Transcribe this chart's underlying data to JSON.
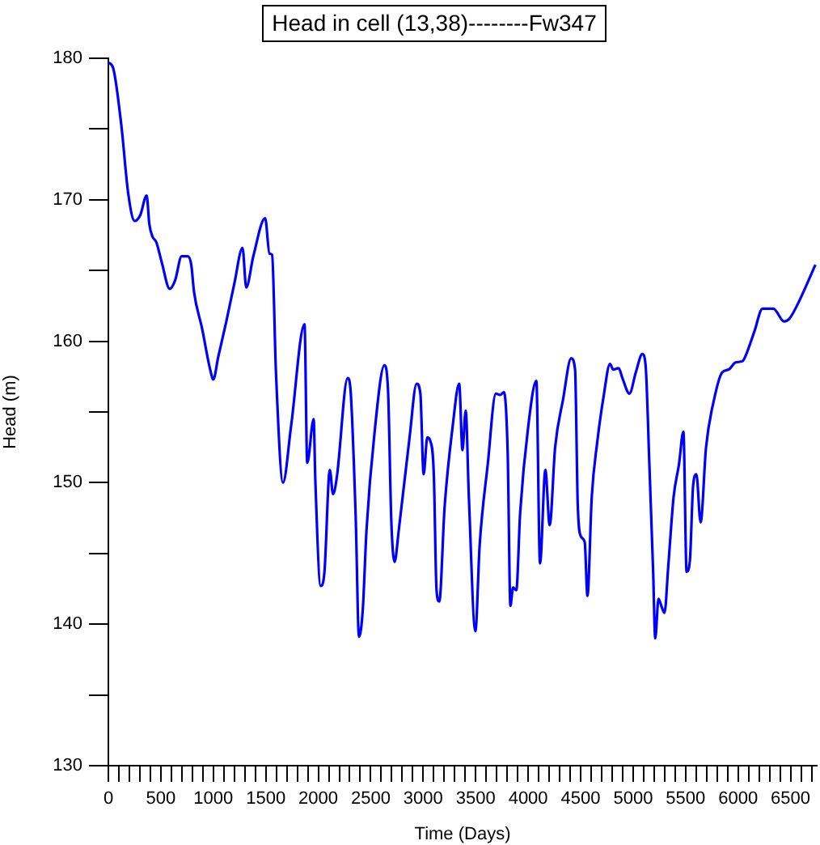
{
  "chart_data": {
    "type": "line",
    "title": "Head in cell (13,38)--------Fw347",
    "xlabel": "Time (Days)",
    "ylabel": "Head (m)",
    "x": [
      0,
      46,
      123,
      190,
      251,
      303,
      365,
      390,
      420,
      457,
      508,
      585,
      636,
      698,
      755,
      790,
      816,
      893,
      970,
      1000,
      1047,
      1124,
      1201,
      1278,
      1314,
      1381,
      1494,
      1535,
      1560,
      1597,
      1664,
      1741,
      1869,
      1895,
      1956,
      1972,
      2023,
      2059,
      2110,
      2141,
      2177,
      2280,
      2306,
      2357,
      2388,
      2424,
      2460,
      2537,
      2630,
      2665,
      2696,
      2727,
      2768,
      2870,
      2937,
      2973,
      3004,
      3039,
      3065,
      3101,
      3127,
      3153,
      3204,
      3281,
      3343,
      3374,
      3405,
      3435,
      3497,
      3538,
      3615,
      3692,
      3733,
      3769,
      3805,
      3831,
      3856,
      3887,
      3924,
      4001,
      4078,
      4113,
      4164,
      4205,
      4257,
      4333,
      4410,
      4447,
      4472,
      4503,
      4539,
      4565,
      4606,
      4657,
      4719,
      4780,
      4811,
      4862,
      4898,
      4965,
      5026,
      5088,
      5119,
      5155,
      5191,
      5211,
      5242,
      5273,
      5299,
      5335,
      5386,
      5437,
      5479,
      5510,
      5541,
      5572,
      5603,
      5643,
      5695,
      5772,
      5849,
      5911,
      5977,
      6043,
      6079,
      6156,
      6233,
      6336,
      6439,
      6490,
      6567,
      6737
    ],
    "series": [
      {
        "color": "#0000ff",
        "values": [
          179.7,
          179.3,
          175.3,
          170.4,
          168.5,
          168.9,
          170.3,
          168.3,
          167.4,
          167.0,
          165.6,
          163.7,
          164.3,
          166.0,
          166.0,
          165.4,
          163.5,
          160.9,
          158.0,
          157.3,
          158.9,
          161.4,
          164.1,
          166.6,
          163.8,
          166.0,
          168.7,
          166.2,
          166.1,
          157.8,
          150.0,
          154.0,
          161.2,
          151.4,
          154.5,
          150.2,
          142.7,
          143.7,
          150.9,
          149.2,
          150.4,
          157.4,
          156.7,
          147.5,
          139.1,
          141.0,
          146.7,
          153.6,
          158.3,
          156.5,
          147.3,
          144.4,
          146.7,
          153.2,
          157.0,
          156.3,
          150.6,
          153.2,
          153.0,
          150.6,
          142.4,
          141.6,
          148.3,
          154.0,
          157.0,
          152.3,
          155.1,
          149.0,
          139.5,
          145.6,
          151.3,
          156.3,
          156.2,
          156.4,
          152.1,
          141.3,
          142.6,
          142.4,
          147.9,
          154.0,
          157.2,
          144.3,
          150.9,
          147.0,
          152.5,
          155.9,
          158.8,
          158.0,
          148.6,
          146.2,
          145.8,
          142.0,
          149.0,
          152.8,
          156.1,
          158.4,
          158.0,
          158.1,
          157.4,
          156.3,
          157.8,
          159.1,
          158.3,
          151.3,
          143.7,
          139.0,
          141.8,
          141.2,
          140.8,
          144.1,
          149.0,
          151.3,
          153.6,
          143.7,
          144.5,
          149.8,
          150.6,
          147.2,
          152.5,
          155.9,
          157.8,
          158.0,
          158.5,
          158.6,
          159.1,
          160.7,
          162.3,
          162.3,
          161.4,
          161.6,
          162.6,
          165.4
        ]
      }
    ],
    "xlim": [
      0,
      6750
    ],
    "xticks": [
      0,
      {
        "value": 100,
        "label": null
      },
      {
        "value": 200,
        "label": null
      },
      {
        "value": 300,
        "label": null
      },
      {
        "value": 400,
        "label": null
      },
      500,
      {
        "value": 600,
        "label": null
      },
      {
        "value": 700,
        "label": null
      },
      {
        "value": 800,
        "label": null
      },
      {
        "value": 900,
        "label": null
      },
      1000,
      {
        "value": 1100,
        "label": null
      },
      {
        "value": 1200,
        "label": null
      },
      {
        "value": 1300,
        "label": null
      },
      {
        "value": 1400,
        "label": null
      },
      1500,
      {
        "value": 1600,
        "label": null
      },
      {
        "value": 1700,
        "label": null
      },
      {
        "value": 1800,
        "label": null
      },
      {
        "value": 1900,
        "label": null
      },
      2000,
      {
        "value": 2100,
        "label": null
      },
      {
        "value": 2200,
        "label": null
      },
      {
        "value": 2300,
        "label": null
      },
      {
        "value": 2400,
        "label": null
      },
      2500,
      {
        "value": 2600,
        "label": null
      },
      {
        "value": 2700,
        "label": null
      },
      {
        "value": 2800,
        "label": null
      },
      {
        "value": 2900,
        "label": null
      },
      3000,
      {
        "value": 3100,
        "label": null
      },
      {
        "value": 3200,
        "label": null
      },
      {
        "value": 3300,
        "label": null
      },
      {
        "value": 3400,
        "label": null
      },
      3500,
      {
        "value": 3600,
        "label": null
      },
      {
        "value": 3700,
        "label": null
      },
      {
        "value": 3800,
        "label": null
      },
      {
        "value": 3900,
        "label": null
      },
      4000,
      {
        "value": 4100,
        "label": null
      },
      {
        "value": 4200,
        "label": null
      },
      {
        "value": 4300,
        "label": null
      },
      {
        "value": 4400,
        "label": null
      },
      4500,
      {
        "value": 4600,
        "label": null
      },
      {
        "value": 4700,
        "label": null
      },
      {
        "value": 4800,
        "label": null
      },
      {
        "value": 4900,
        "label": null
      },
      5000,
      {
        "value": 5100,
        "label": null
      },
      {
        "value": 5200,
        "label": null
      },
      {
        "value": 5300,
        "label": null
      },
      {
        "value": 5400,
        "label": null
      },
      5500,
      {
        "value": 5600,
        "label": null
      },
      {
        "value": 5700,
        "label": null
      },
      {
        "value": 5800,
        "label": null
      },
      {
        "value": 5900,
        "label": null
      },
      6000,
      {
        "value": 6100,
        "label": null
      },
      {
        "value": 6200,
        "label": null
      },
      {
        "value": 6300,
        "label": null
      },
      {
        "value": 6400,
        "label": null
      },
      6500,
      {
        "value": 6600,
        "label": null
      },
      {
        "value": 6700,
        "label": null
      }
    ],
    "ylim": [
      130,
      180
    ],
    "yticks": [
      130,
      {
        "value": 135,
        "label": null
      },
      140,
      {
        "value": 145,
        "label": null
      },
      150,
      {
        "value": 155,
        "label": null
      },
      160,
      {
        "value": 165,
        "label": null
      },
      170,
      {
        "value": 175,
        "label": null
      },
      180
    ],
    "grid": false,
    "legend": false,
    "marker": "none",
    "line_style": "solid"
  }
}
